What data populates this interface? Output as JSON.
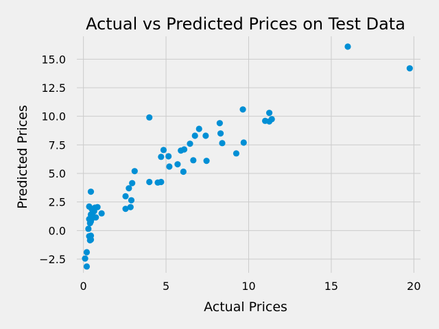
{
  "chart_data": {
    "type": "scatter",
    "title": "Actual vs Predicted Prices on Test Data",
    "xlabel": "Actual Prices",
    "ylabel": "Predicted Prices",
    "xlim": [
      -0.4,
      20.4
    ],
    "ylim": [
      -3.7,
      17.0
    ],
    "xticks": [
      0,
      5,
      10,
      15,
      20
    ],
    "xtick_labels": [
      "0",
      "5",
      "10",
      "15",
      "20"
    ],
    "yticks": [
      -2.5,
      0.0,
      2.5,
      5.0,
      7.5,
      10.0,
      12.5,
      15.0
    ],
    "ytick_labels": [
      "−2.5",
      "0.0",
      "2.5",
      "5.0",
      "7.5",
      "10.0",
      "12.5",
      "15.0"
    ],
    "grid": true,
    "color": "#008fd5",
    "points": [
      [
        16.0,
        16.1
      ],
      [
        19.75,
        14.2
      ],
      [
        9.65,
        10.6
      ],
      [
        11.25,
        10.3
      ],
      [
        11.4,
        9.75
      ],
      [
        11.0,
        9.6
      ],
      [
        11.25,
        9.55
      ],
      [
        3.99,
        9.9
      ],
      [
        8.25,
        9.4
      ],
      [
        7.0,
        8.9
      ],
      [
        6.75,
        8.3
      ],
      [
        7.4,
        8.3
      ],
      [
        8.3,
        8.5
      ],
      [
        9.7,
        7.7
      ],
      [
        8.4,
        7.65
      ],
      [
        6.45,
        7.6
      ],
      [
        4.85,
        7.05
      ],
      [
        5.9,
        7.0
      ],
      [
        6.1,
        7.1
      ],
      [
        9.25,
        6.75
      ],
      [
        4.7,
        6.45
      ],
      [
        5.15,
        6.5
      ],
      [
        6.65,
        6.15
      ],
      [
        7.45,
        6.1
      ],
      [
        5.7,
        5.8
      ],
      [
        5.2,
        5.6
      ],
      [
        3.1,
        5.2
      ],
      [
        6.05,
        5.15
      ],
      [
        3.99,
        4.25
      ],
      [
        4.5,
        4.2
      ],
      [
        4.7,
        4.25
      ],
      [
        2.95,
        4.15
      ],
      [
        2.75,
        3.7
      ],
      [
        0.45,
        3.4
      ],
      [
        2.55,
        3.0
      ],
      [
        2.9,
        2.65
      ],
      [
        0.35,
        2.1
      ],
      [
        0.85,
        2.05
      ],
      [
        0.7,
        2.0
      ],
      [
        0.5,
        1.9
      ],
      [
        2.85,
        2.05
      ],
      [
        2.55,
        1.9
      ],
      [
        0.65,
        1.7
      ],
      [
        0.55,
        1.55
      ],
      [
        0.45,
        1.4
      ],
      [
        1.1,
        1.5
      ],
      [
        0.75,
        1.15
      ],
      [
        0.55,
        1.1
      ],
      [
        0.35,
        1.0
      ],
      [
        0.45,
        0.8
      ],
      [
        0.4,
        0.65
      ],
      [
        0.3,
        0.15
      ],
      [
        0.35,
        -0.5
      ],
      [
        0.45,
        -0.45
      ],
      [
        0.4,
        -0.85
      ],
      [
        0.45,
        -0.8
      ],
      [
        0.2,
        -1.9
      ],
      [
        0.1,
        -2.45
      ],
      [
        0.2,
        -3.15
      ]
    ]
  }
}
